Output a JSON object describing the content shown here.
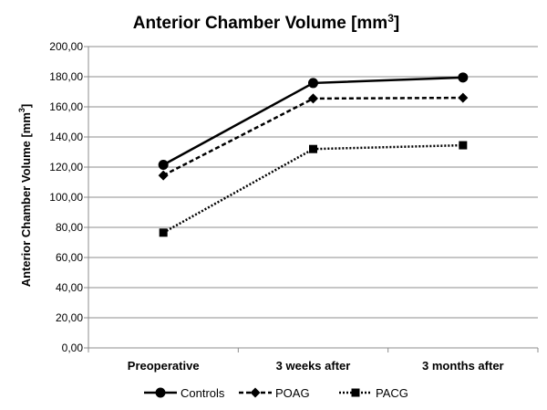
{
  "chart_data": {
    "type": "line",
    "title": "Anterior Chamber Volume [mm",
    "title_sup": "3",
    "title_suffix": "]",
    "ylabel": "Anterior Chamber Volume [mm",
    "ylabel_sup": "3",
    "ylabel_suffix": "]",
    "xlabel": "",
    "categories": [
      "Preoperative",
      "3 weeks after",
      "3 months after"
    ],
    "ylim": [
      0,
      200
    ],
    "ytick_step": 20,
    "ytick_labels": [
      "0,00",
      "20,00",
      "40,00",
      "60,00",
      "80,00",
      "100,00",
      "120,00",
      "140,00",
      "160,00",
      "180,00",
      "200,00"
    ],
    "grid": true,
    "legend_position": "bottom",
    "series": [
      {
        "name": "Controls",
        "values": [
          121.5,
          175.8,
          179.5
        ],
        "marker": "circle",
        "dash": "solid",
        "color": "#000000"
      },
      {
        "name": "POAG",
        "values": [
          114.5,
          165.5,
          166.0
        ],
        "marker": "diamond",
        "dash": "dashed",
        "color": "#000000"
      },
      {
        "name": "PACG",
        "values": [
          76.5,
          132.0,
          134.5
        ],
        "marker": "square",
        "dash": "dotted",
        "color": "#000000"
      }
    ]
  }
}
